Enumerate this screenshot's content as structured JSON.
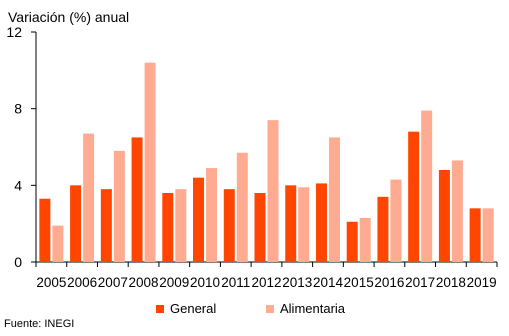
{
  "chart_data": {
    "type": "bar",
    "ylabel": "Variación (%)  anual",
    "source": "Fuente: INEGI",
    "categories": [
      "2005",
      "2006",
      "2007",
      "2008",
      "2009",
      "2010",
      "2011",
      "2012",
      "2013",
      "2014",
      "2015",
      "2016",
      "2017",
      "2018",
      "2019"
    ],
    "series": [
      {
        "name": "General",
        "color": "#ff4500",
        "values": [
          3.3,
          4.0,
          3.8,
          6.5,
          3.6,
          4.4,
          3.8,
          3.6,
          4.0,
          4.1,
          2.1,
          3.4,
          6.8,
          4.8,
          2.8
        ]
      },
      {
        "name": "Alimentaria",
        "color": "#ffab91",
        "values": [
          1.9,
          6.7,
          5.8,
          10.4,
          3.8,
          4.9,
          5.7,
          7.4,
          3.9,
          6.5,
          2.3,
          4.3,
          7.9,
          5.3,
          2.8
        ]
      }
    ],
    "ylim": [
      0,
      12
    ],
    "yticks": [
      0,
      4,
      8,
      12
    ],
    "legend": "bottom",
    "grid": false
  }
}
